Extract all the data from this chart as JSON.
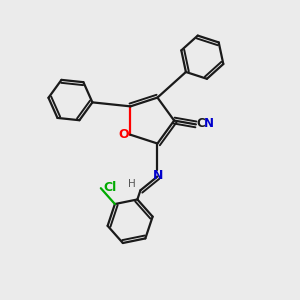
{
  "background_color": "#ebebeb",
  "bond_color": "#1a1a1a",
  "oxygen_color": "#ff0000",
  "nitrogen_color": "#0000cc",
  "chlorine_color": "#00aa00",
  "cn_color": "#0000cc",
  "figsize": [
    3.0,
    3.0
  ],
  "dpi": 100,
  "xlim": [
    0,
    10
  ],
  "ylim": [
    0,
    10
  ]
}
